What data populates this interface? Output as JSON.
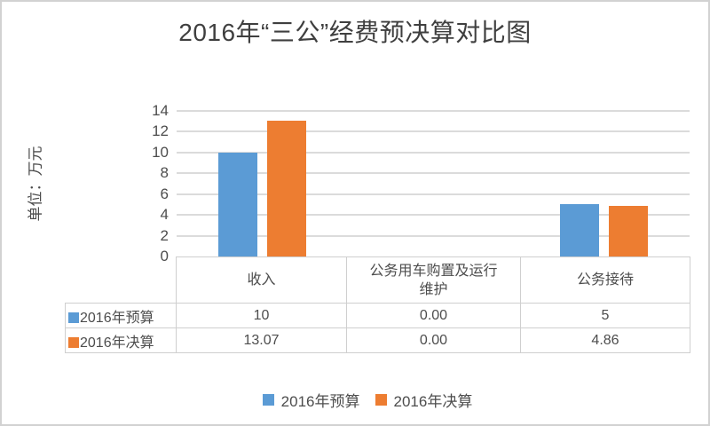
{
  "title": "2016年“三公”经费预决算对比图",
  "y_axis": {
    "unit_label": "单位：万元",
    "ticks": [
      "0",
      "2",
      "4",
      "6",
      "8",
      "10",
      "12",
      "14"
    ]
  },
  "chart_data": {
    "type": "bar",
    "title": "2016年“三公”经费预决算对比图",
    "categories": [
      "收入",
      "公务用车购置及运行维护",
      "公务接待"
    ],
    "series": [
      {
        "name": "2016年预算",
        "color": "#5B9BD5",
        "values": [
          10,
          0,
          5
        ]
      },
      {
        "name": "2016年决算",
        "color": "#ED7D31",
        "values": [
          13.07,
          0,
          4.86
        ]
      }
    ],
    "ylabel": "单位：万元",
    "ylim": [
      0,
      14
    ],
    "ytick_step": 2,
    "grid": true,
    "legend_position": "bottom"
  },
  "table": {
    "col_headers": [
      "收入",
      "公务用车购置及运行维护",
      "公务接待"
    ],
    "rows": [
      {
        "series": "2016年预算",
        "swatch_color": "#5B9BD5",
        "values": [
          "10",
          "0.00",
          "5"
        ]
      },
      {
        "series": "2016年决算",
        "swatch_color": "#ED7D31",
        "values": [
          "13.07",
          "0.00",
          "4.86"
        ]
      }
    ]
  },
  "legend": {
    "items": [
      {
        "label": "2016年预算",
        "color": "#5B9BD5"
      },
      {
        "label": "2016年决算",
        "color": "#ED7D31"
      }
    ]
  },
  "colors": {
    "budget": "#5B9BD5",
    "final": "#ED7D31",
    "gridline": "#DBDBDB",
    "table_border": "#CFCFCF",
    "text": "#4D4D4D"
  }
}
